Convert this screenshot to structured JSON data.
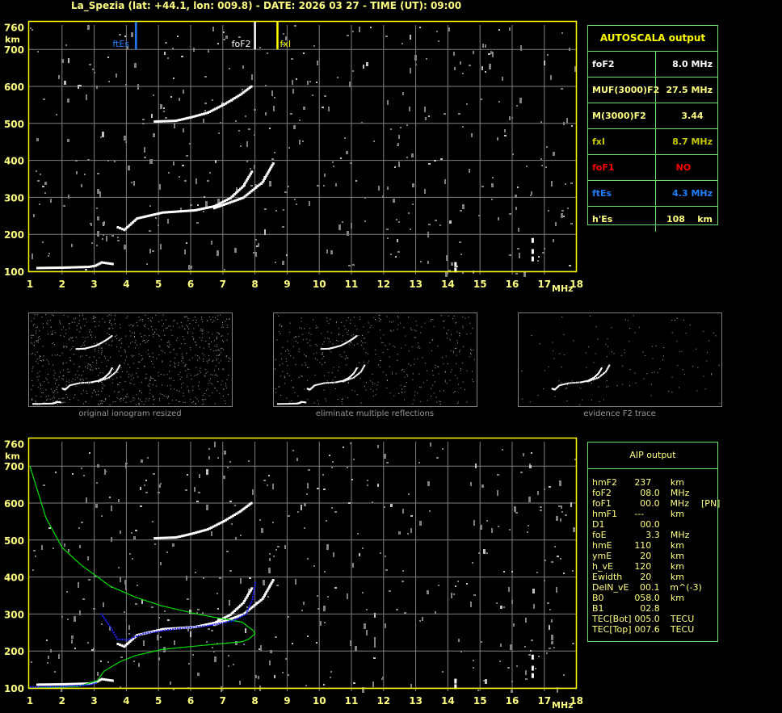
{
  "header": {
    "title": "La_Spezia (lat: +44.1, lon: 009.8) - DATE: 2026 03 27 - TIME (UT): 09:00"
  },
  "autoscala": {
    "title": "AUTOSCALA output",
    "rows": [
      {
        "key": "foF2",
        "value": "8.0 MHz",
        "color": "#ffffff"
      },
      {
        "key": "MUF(3000)F2",
        "value": "27.5 MHz",
        "color": "#ffff80"
      },
      {
        "key": "M(3000)F2",
        "value": "3.44   ",
        "color": "#ffff80"
      },
      {
        "key": "fxI",
        "value": "8.7 MHz",
        "color": "#c8c800"
      },
      {
        "key": "foF1",
        "value": "NO       ",
        "color": "#ff0000"
      },
      {
        "key": "ftEs",
        "value": "4.3 MHz",
        "color": "#1e7fff"
      },
      {
        "key": "h'Es",
        "value": "108    km",
        "color": "#ffff80"
      }
    ]
  },
  "aip": {
    "title": "AIP output",
    "rows": [
      [
        "hmF2",
        "237",
        "km",
        ""
      ],
      [
        "foF2",
        "  08.0",
        "MHz",
        ""
      ],
      [
        "foF1",
        "  00.0",
        "MHz",
        "[PN]"
      ],
      [
        "hmF1",
        "---",
        "km",
        ""
      ],
      [
        "D1",
        "  00.0",
        "",
        ""
      ],
      [
        "foE",
        "    3.3",
        "MHz",
        ""
      ],
      [
        "hmE",
        "110",
        "km",
        ""
      ],
      [
        "ymE",
        "  20",
        "km",
        ""
      ],
      [
        "h_vE",
        "120",
        "km",
        ""
      ],
      [
        "Ewidth",
        "  20",
        "km",
        ""
      ],
      [
        "DelN_vE",
        "  00.1",
        "m^(-3)",
        ""
      ],
      [
        "B0",
        "058.0",
        "km",
        ""
      ],
      [
        "B1",
        "  02.8",
        "",
        ""
      ],
      [
        "TEC[Bot]",
        "005.0",
        "TECU",
        ""
      ],
      [
        "TEC[Top]",
        "007.6",
        "TECU",
        ""
      ]
    ]
  },
  "thumbnails": {
    "captions": [
      "original ionogram resized",
      "eliminate multiple reflections",
      "evidence F2 trace"
    ]
  },
  "chart_data": {
    "type": "scatter",
    "xlabel": "MHz",
    "ylabel": "km",
    "xlim": [
      1,
      18
    ],
    "ylim": [
      100,
      760
    ],
    "xticks": [
      "1",
      "2",
      "3",
      "4",
      "5",
      "6",
      "7",
      "8",
      "9",
      "10",
      "11",
      "12",
      "13",
      "14",
      "15",
      "16",
      "17",
      "18"
    ],
    "yticks": [
      "760",
      "700",
      "600",
      "500",
      "400",
      "300",
      "200",
      "100"
    ],
    "grid": true,
    "colors": {
      "frame": "#ffff00",
      "grid": "#808080",
      "trace": "#ffffff",
      "profile": "#00e000",
      "fit": "#2020ff",
      "ftEs": "#1e7fff",
      "foF2": "#ffffff",
      "fxI": "#ffff00"
    },
    "markers": [
      {
        "label": "ftEs",
        "freq": 4.3,
        "color": "#1e7fff"
      },
      {
        "label": "foF2",
        "freq": 8.0,
        "color": "#ffffff"
      },
      {
        "label": "fxI",
        "freq": 8.7,
        "color": "#ffff00"
      }
    ],
    "traces": {
      "Es": [
        [
          1.2,
          110
        ],
        [
          2.0,
          111
        ],
        [
          2.8,
          113
        ],
        [
          3.0,
          116
        ],
        [
          3.2,
          125
        ],
        [
          3.6,
          120
        ]
      ],
      "F2_o": [
        [
          3.7,
          220
        ],
        [
          3.9,
          213
        ],
        [
          4.3,
          244
        ],
        [
          5.1,
          260
        ],
        [
          6.1,
          266
        ],
        [
          6.7,
          277
        ],
        [
          7.2,
          299
        ],
        [
          7.6,
          331
        ],
        [
          7.9,
          375
        ]
      ],
      "F2_x": [
        [
          6.7,
          272
        ],
        [
          7.6,
          300
        ],
        [
          8.2,
          342
        ],
        [
          8.56,
          397
        ]
      ],
      "F2_2hop": [
        [
          4.85,
          506
        ],
        [
          5.5,
          508
        ],
        [
          6.0,
          518
        ],
        [
          6.5,
          530
        ],
        [
          7.0,
          552
        ],
        [
          7.5,
          578
        ],
        [
          7.9,
          604
        ]
      ]
    },
    "profile": [
      [
        1,
        700
      ],
      [
        1.5,
        560
      ],
      [
        2.0,
        480
      ],
      [
        2.6,
        432
      ],
      [
        3.5,
        375
      ],
      [
        4.3,
        345
      ],
      [
        5.1,
        322
      ],
      [
        6.3,
        298
      ],
      [
        7.6,
        278
      ],
      [
        7.95,
        255
      ],
      [
        8.0,
        246
      ],
      [
        7.8,
        232
      ],
      [
        7.6,
        225
      ],
      [
        6.0,
        212
      ],
      [
        5.1,
        204
      ],
      [
        4.3,
        188
      ],
      [
        3.8,
        171
      ],
      [
        3.3,
        145
      ],
      [
        3.1,
        120
      ],
      [
        2.5,
        104
      ],
      [
        1,
        100
      ]
    ],
    "fit": [
      [
        1,
        102
      ],
      [
        2.0,
        104
      ],
      [
        2.8,
        108
      ],
      [
        3.1,
        115
      ],
      [
        3.2,
        300
      ],
      [
        3.5,
        262
      ],
      [
        3.7,
        232
      ],
      [
        4.0,
        230
      ],
      [
        4.5,
        247
      ],
      [
        5.5,
        260
      ],
      [
        6.5,
        268
      ],
      [
        7.3,
        282
      ],
      [
        7.7,
        300
      ],
      [
        7.9,
        340
      ],
      [
        8.0,
        390
      ]
    ]
  }
}
